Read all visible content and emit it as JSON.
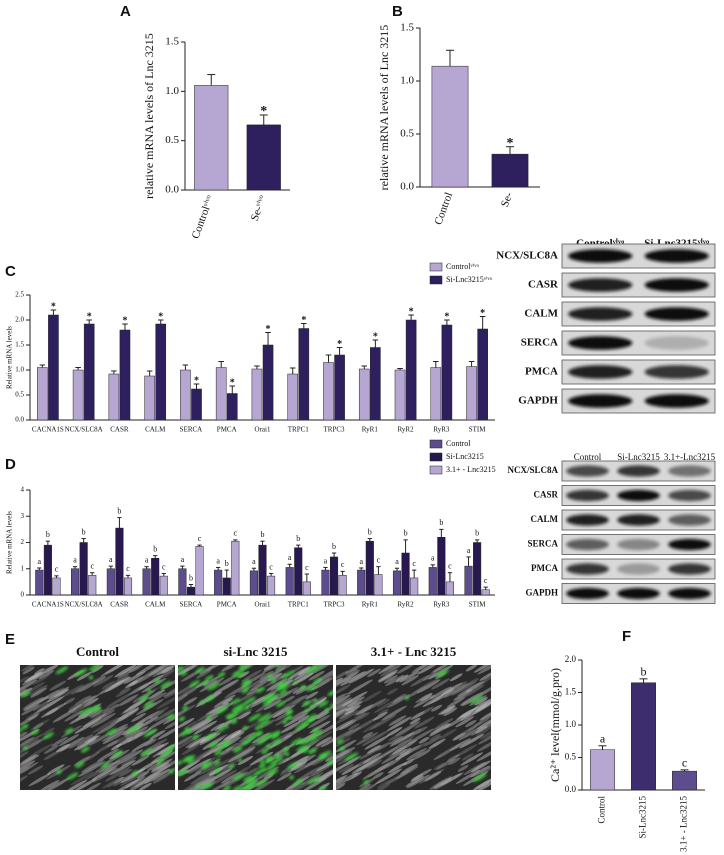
{
  "chart_data": [
    {
      "type": "bar",
      "title": "A",
      "ylabel": "relative mRNA levels of Lnc 3215",
      "categories": [
        "Controlᵛⁱᵛᵒ",
        "Se-ᵛⁱᵛᵒ"
      ],
      "values": [
        1.06,
        0.66
      ],
      "errors": [
        0.11,
        0.1
      ],
      "annotations": [
        null,
        "*"
      ],
      "colors": [
        "#b5a6d2",
        "#2e1f5e"
      ],
      "ylim": [
        0,
        1.5
      ],
      "yticks": [
        {
          "value": 0,
          "label": "0.0"
        },
        0.5,
        {
          "value": 1,
          "label": "1.0"
        },
        1.5
      ]
    },
    {
      "type": "bar",
      "title": "B",
      "ylabel": "relative mRNA levels of Lnc 3215",
      "categories": [
        "Control",
        "Se-"
      ],
      "values": [
        1.14,
        0.31
      ],
      "errors": [
        0.15,
        0.07
      ],
      "annotations": [
        null,
        "*"
      ],
      "colors": [
        "#b5a6d2",
        "#2e1f5e"
      ],
      "ylim": [
        0,
        1.5
      ],
      "yticks": [
        {
          "value": 0,
          "label": "0.0"
        },
        0.5,
        {
          "value": 1,
          "label": "1.0"
        },
        1.5
      ]
    },
    {
      "type": "bar",
      "title": "C",
      "ylabel": "Relative mRNA levels",
      "categories": [
        "CACNA1S",
        "NCX/SLC8A",
        "CASR",
        "CALM",
        "SERCA",
        "PMCA",
        "Orai1",
        "TRPC1",
        "TRPC3",
        "RyR1",
        "RyR2",
        "RyR3",
        "STIM"
      ],
      "series": [
        {
          "name": "Controlᵛⁱᵛᵒ",
          "color": "#b5a6d2",
          "values": [
            1.05,
            1.0,
            0.92,
            0.88,
            1.0,
            1.05,
            1.02,
            0.92,
            1.15,
            1.02,
            1.0,
            1.05,
            1.07
          ],
          "errors": [
            0.05,
            0.05,
            0.06,
            0.1,
            0.1,
            0.12,
            0.06,
            0.12,
            0.15,
            0.06,
            0.03,
            0.12,
            0.1
          ]
        },
        {
          "name": "Si-Lnc3215ᵛⁱᵛᵒ",
          "color": "#2e1f5e",
          "values": [
            2.1,
            1.92,
            1.8,
            1.92,
            0.62,
            0.53,
            1.5,
            1.83,
            1.3,
            1.45,
            2.0,
            1.9,
            1.82
          ],
          "errors": [
            0.1,
            0.08,
            0.12,
            0.08,
            0.1,
            0.15,
            0.25,
            0.1,
            0.15,
            0.15,
            0.1,
            0.1,
            0.25
          ],
          "annotations": [
            "*",
            "*",
            "*",
            "*",
            "*",
            "*",
            "*",
            "*",
            "*",
            "*",
            "*",
            "*",
            "*"
          ]
        }
      ],
      "ylim": [
        0,
        2.5
      ],
      "yticks": [
        {
          "value": 0,
          "label": "0.0"
        },
        0.5,
        {
          "value": 1,
          "label": "1.0"
        },
        1.5,
        {
          "value": 2,
          "label": "2.0"
        },
        2.5
      ]
    },
    {
      "type": "bar",
      "title": "D",
      "ylabel": "Relative mRNA levels",
      "categories": [
        "CACNA1S",
        "NCX/SLC8A",
        "CASR",
        "CALM",
        "SERCA",
        "PMCA",
        "Orai1",
        "TRPC1",
        "TRPC3",
        "RyR1",
        "RyR2",
        "RyR3",
        "STIM"
      ],
      "series": [
        {
          "name": "Control",
          "color": "#5d4d8e",
          "values": [
            0.95,
            1.0,
            1.0,
            1.0,
            1.0,
            0.95,
            0.92,
            1.05,
            0.95,
            0.95,
            0.92,
            1.05,
            1.1
          ],
          "errors": [
            0.08,
            0.08,
            0.1,
            0.08,
            0.1,
            0.1,
            0.1,
            0.12,
            0.1,
            0.08,
            0.1,
            0.1,
            0.35
          ],
          "annotations": [
            "a",
            "a",
            "a",
            "a",
            "a",
            "a",
            "a",
            "a",
            "a",
            "a",
            "a",
            "a",
            "a"
          ]
        },
        {
          "name": "Si-Lnc3215",
          "color": "#27184f",
          "values": [
            1.9,
            2.0,
            2.55,
            1.4,
            0.3,
            0.65,
            1.9,
            1.8,
            1.45,
            2.05,
            1.6,
            2.2,
            2.0
          ],
          "errors": [
            0.15,
            0.15,
            0.4,
            0.1,
            0.1,
            0.3,
            0.15,
            0.1,
            0.15,
            0.1,
            0.5,
            0.3,
            0.1
          ],
          "annotations": [
            "b",
            "b",
            "b",
            "b",
            "b",
            "b",
            "b",
            "b",
            "b",
            "b",
            "b",
            "b",
            "b"
          ]
        },
        {
          "name": "3.1+ - Lnc3215",
          "color": "#b5a6d2",
          "values": [
            0.65,
            0.75,
            0.65,
            0.72,
            1.85,
            2.05,
            0.72,
            0.5,
            0.75,
            0.78,
            0.65,
            0.5,
            0.2
          ],
          "errors": [
            0.08,
            0.1,
            0.1,
            0.1,
            0.05,
            0.05,
            0.1,
            0.3,
            0.15,
            0.3,
            0.3,
            0.35,
            0.1
          ],
          "annotations": [
            "c",
            "c",
            "c",
            "c",
            "c",
            "c",
            "c",
            "c",
            "c",
            "c",
            "c",
            "c",
            "c"
          ]
        }
      ],
      "ylim": [
        0,
        4
      ],
      "yticks": [
        0,
        1,
        2,
        3,
        4
      ]
    },
    {
      "type": "bar",
      "title": "F",
      "ylabel": "Ca²⁺ level(mmol/g.pro)",
      "categories": [
        "Control",
        "Si-Lnc3215",
        "3.1+ - Lnc3215"
      ],
      "values": [
        0.62,
        1.65,
        0.29
      ],
      "errors": [
        0.06,
        0.06,
        0.02
      ],
      "annotations": [
        "a",
        "b",
        "c"
      ],
      "colors": [
        "#b5a6d2",
        "#3e2d6e",
        "#5d4d8e"
      ],
      "ylim": [
        0,
        2
      ],
      "yticks": [
        {
          "value": 0,
          "label": "0.0"
        },
        0.5,
        {
          "value": 1,
          "label": "1.0"
        },
        1.5,
        {
          "value": 2,
          "label": "2.0"
        }
      ]
    }
  ],
  "blots": [
    {
      "lanes": [
        "Controlᵛⁱᵛᵒ",
        "Si-Lnc3215ᵛⁱᵛᵒ"
      ],
      "rows": [
        "NCX/SLC8A",
        "CASR",
        "CALM",
        "SERCA",
        "PMCA",
        "GAPDH"
      ]
    },
    {
      "lanes": [
        "Control",
        "Si-Lnc3215",
        "3.1+-Lnc3215"
      ],
      "rows": [
        "NCX/SLC8A",
        "CASR",
        "CALM",
        "SERCA",
        "PMCA",
        "GAPDH"
      ]
    }
  ],
  "micrographs": {
    "label": "E",
    "titles": [
      "Control",
      "si-Lnc 3215",
      "3.1+ - Lnc 3215"
    ]
  }
}
